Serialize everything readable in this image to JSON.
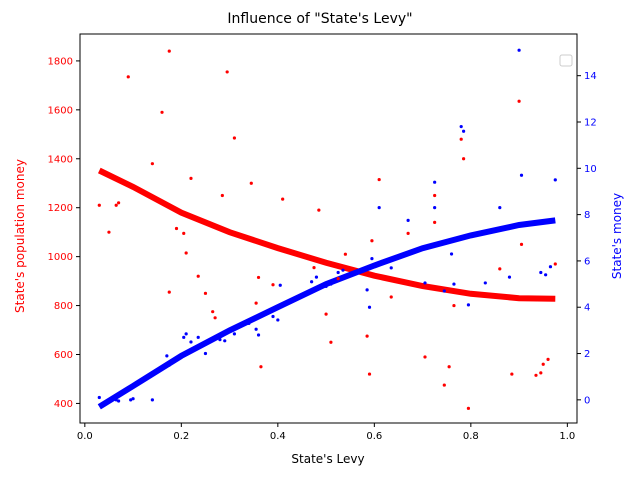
{
  "chart_data": {
    "type": "scatter",
    "title": "Influence of \"State's Levy\"",
    "xlabel": "State's Levy",
    "ylabel_left": "State's population money",
    "ylabel_right": "State's money",
    "xlim": [
      -0.01,
      1.02
    ],
    "ylim_left": [
      320,
      1910
    ],
    "ylim_right": [
      -1.0,
      15.8
    ],
    "x_ticks": [
      "0.0",
      "0.2",
      "0.4",
      "0.6",
      "0.8",
      "1.0"
    ],
    "y_left_ticks": [
      "400",
      "600",
      "800",
      "1000",
      "1200",
      "1400",
      "1600",
      "1800"
    ],
    "y_right_ticks": [
      "0",
      "2",
      "4",
      "6",
      "8",
      "10",
      "12",
      "14"
    ],
    "grid": false,
    "legend": "top-right (empty)",
    "colors": {
      "left": "#ff0000",
      "right": "#0000ff"
    },
    "left_points": [
      [
        0.03,
        1210
      ],
      [
        0.05,
        1100
      ],
      [
        0.065,
        1210
      ],
      [
        0.07,
        1220
      ],
      [
        0.09,
        1735
      ],
      [
        0.1,
        1290
      ],
      [
        0.14,
        1380
      ],
      [
        0.16,
        1590
      ],
      [
        0.175,
        1840
      ],
      [
        0.175,
        855
      ],
      [
        0.19,
        1115
      ],
      [
        0.205,
        1095
      ],
      [
        0.21,
        1015
      ],
      [
        0.22,
        1320
      ],
      [
        0.235,
        920
      ],
      [
        0.25,
        850
      ],
      [
        0.265,
        775
      ],
      [
        0.27,
        750
      ],
      [
        0.285,
        1250
      ],
      [
        0.295,
        1755
      ],
      [
        0.31,
        1485
      ],
      [
        0.345,
        1300
      ],
      [
        0.355,
        810
      ],
      [
        0.36,
        915
      ],
      [
        0.365,
        550
      ],
      [
        0.39,
        885
      ],
      [
        0.41,
        1235
      ],
      [
        0.475,
        955
      ],
      [
        0.485,
        1190
      ],
      [
        0.5,
        765
      ],
      [
        0.51,
        650
      ],
      [
        0.525,
        910
      ],
      [
        0.54,
        1010
      ],
      [
        0.585,
        675
      ],
      [
        0.59,
        520
      ],
      [
        0.595,
        1065
      ],
      [
        0.61,
        1315
      ],
      [
        0.635,
        835
      ],
      [
        0.67,
        1095
      ],
      [
        0.705,
        590
      ],
      [
        0.725,
        1250
      ],
      [
        0.725,
        1140
      ],
      [
        0.745,
        475
      ],
      [
        0.755,
        550
      ],
      [
        0.765,
        800
      ],
      [
        0.78,
        1480
      ],
      [
        0.785,
        1400
      ],
      [
        0.795,
        380
      ],
      [
        0.86,
        950
      ],
      [
        0.885,
        520
      ],
      [
        0.9,
        1635
      ],
      [
        0.905,
        1050
      ],
      [
        0.935,
        515
      ],
      [
        0.945,
        525
      ],
      [
        0.95,
        560
      ],
      [
        0.96,
        580
      ],
      [
        0.975,
        970
      ]
    ],
    "right_points": [
      [
        0.03,
        0.1
      ],
      [
        0.065,
        0.0
      ],
      [
        0.07,
        -0.05
      ],
      [
        0.095,
        0.0
      ],
      [
        0.1,
        0.05
      ],
      [
        0.14,
        0.0
      ],
      [
        0.17,
        1.9
      ],
      [
        0.175,
        1.5
      ],
      [
        0.185,
        1.7
      ],
      [
        0.19,
        1.8
      ],
      [
        0.205,
        2.7
      ],
      [
        0.21,
        2.85
      ],
      [
        0.22,
        2.5
      ],
      [
        0.235,
        2.7
      ],
      [
        0.25,
        2.0
      ],
      [
        0.28,
        2.6
      ],
      [
        0.29,
        2.55
      ],
      [
        0.31,
        2.85
      ],
      [
        0.34,
        3.3
      ],
      [
        0.355,
        3.05
      ],
      [
        0.36,
        2.8
      ],
      [
        0.39,
        3.6
      ],
      [
        0.4,
        3.45
      ],
      [
        0.405,
        4.95
      ],
      [
        0.47,
        5.1
      ],
      [
        0.48,
        5.3
      ],
      [
        0.5,
        4.9
      ],
      [
        0.51,
        5.0
      ],
      [
        0.525,
        5.5
      ],
      [
        0.535,
        5.6
      ],
      [
        0.585,
        4.75
      ],
      [
        0.59,
        4.0
      ],
      [
        0.595,
        6.1
      ],
      [
        0.61,
        8.3
      ],
      [
        0.635,
        5.7
      ],
      [
        0.67,
        7.75
      ],
      [
        0.705,
        5.05
      ],
      [
        0.725,
        9.4
      ],
      [
        0.725,
        8.3
      ],
      [
        0.745,
        4.7
      ],
      [
        0.76,
        6.3
      ],
      [
        0.765,
        5.0
      ],
      [
        0.78,
        11.8
      ],
      [
        0.785,
        11.6
      ],
      [
        0.795,
        4.1
      ],
      [
        0.83,
        5.05
      ],
      [
        0.86,
        8.3
      ],
      [
        0.88,
        5.3
      ],
      [
        0.9,
        15.1
      ],
      [
        0.905,
        9.7
      ],
      [
        0.945,
        5.5
      ],
      [
        0.955,
        5.4
      ],
      [
        0.965,
        5.75
      ],
      [
        0.975,
        9.5
      ]
    ],
    "left_fit": [
      [
        0.03,
        1352
      ],
      [
        0.1,
        1285
      ],
      [
        0.2,
        1180
      ],
      [
        0.3,
        1100
      ],
      [
        0.4,
        1035
      ],
      [
        0.5,
        975
      ],
      [
        0.6,
        922
      ],
      [
        0.7,
        880
      ],
      [
        0.8,
        848
      ],
      [
        0.9,
        830
      ],
      [
        0.975,
        828
      ]
    ],
    "right_fit": [
      [
        0.03,
        -0.3
      ],
      [
        0.1,
        0.6
      ],
      [
        0.2,
        1.9
      ],
      [
        0.3,
        3.0
      ],
      [
        0.4,
        4.0
      ],
      [
        0.5,
        5.0
      ],
      [
        0.6,
        5.8
      ],
      [
        0.7,
        6.55
      ],
      [
        0.8,
        7.1
      ],
      [
        0.9,
        7.55
      ],
      [
        0.975,
        7.75
      ]
    ]
  }
}
